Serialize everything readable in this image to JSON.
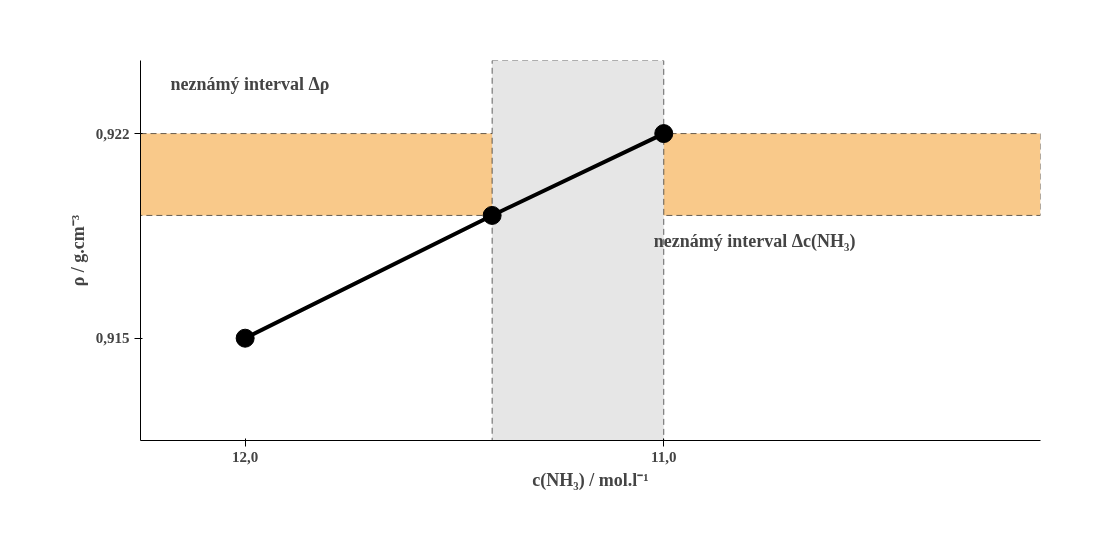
{
  "chart_data": {
    "type": "line",
    "xlabel": "c(NH₃) / mol.l⁻¹",
    "ylabel": "ρ / g.cm⁻³",
    "x": [
      12.0,
      11.41,
      11.0
    ],
    "series": [
      {
        "color": "#000000",
        "values": [
          0.915,
          0.9192,
          0.922
        ]
      }
    ],
    "xlim": [
      12.25,
      10.1
    ],
    "ylim": [
      0.9115,
      0.9245
    ],
    "xticks": [
      {
        "value": 12.0,
        "label": "12,0"
      },
      {
        "value": 11.0,
        "label": "11,0"
      }
    ],
    "yticks": [
      {
        "value": 0.915,
        "label": "0,915"
      },
      {
        "value": 0.922,
        "label": "0,922"
      }
    ],
    "bands": [
      {
        "axis": "y",
        "from": 0.9192,
        "to": 0.922,
        "label": "neznámý interval Δρ",
        "color": "#f9c98a"
      },
      {
        "axis": "x",
        "from": 11.41,
        "to": 11.0,
        "label": "neznámý interval Δc(NH₃)",
        "color": "#e6e6e6"
      }
    ],
    "marker": "circle",
    "line_style": "solid",
    "grid": false
  }
}
